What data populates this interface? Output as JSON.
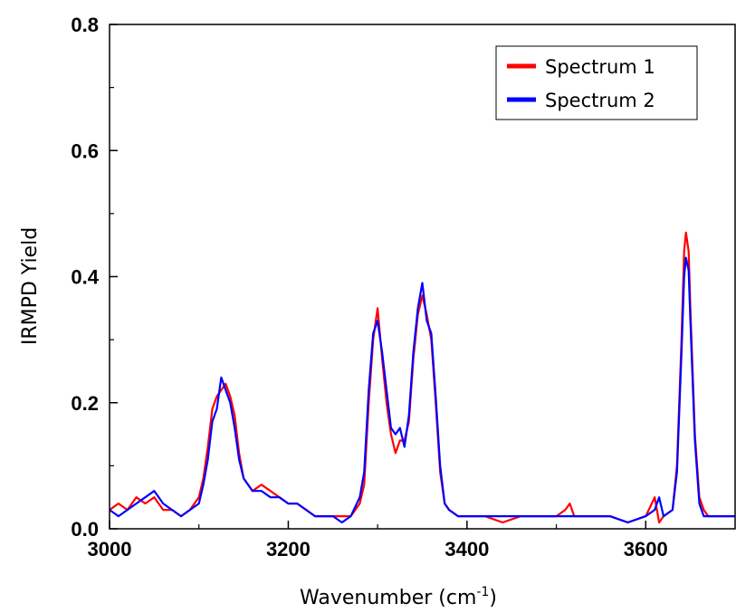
{
  "chart_data": {
    "type": "line",
    "xlabel": "Wavenumber (cm",
    "xlabel_sup": "-1",
    "xlabel_close": ")",
    "ylabel": "IRMPD Yield",
    "xlim": [
      3000,
      3700
    ],
    "ylim": [
      0.0,
      0.8
    ],
    "xticks": [
      3000,
      3200,
      3400,
      3600
    ],
    "xtick_labels": [
      "3000",
      "3200",
      "3400",
      "3600"
    ],
    "yticks": [
      0.0,
      0.2,
      0.4,
      0.6,
      0.8
    ],
    "ytick_labels": [
      "0.0",
      "0.2",
      "0.4",
      "0.6",
      "0.8"
    ],
    "grid": false,
    "legend_position": "top-right",
    "series": [
      {
        "name": "Spectrum 1",
        "color": "#ff0000",
        "x": [
          3000,
          3010,
          3020,
          3030,
          3040,
          3050,
          3060,
          3070,
          3080,
          3090,
          3100,
          3105,
          3110,
          3115,
          3120,
          3125,
          3130,
          3135,
          3140,
          3145,
          3150,
          3160,
          3170,
          3180,
          3190,
          3200,
          3210,
          3220,
          3230,
          3240,
          3250,
          3260,
          3270,
          3280,
          3285,
          3290,
          3295,
          3300,
          3305,
          3310,
          3315,
          3320,
          3325,
          3330,
          3335,
          3340,
          3345,
          3350,
          3355,
          3360,
          3365,
          3370,
          3375,
          3380,
          3390,
          3400,
          3420,
          3440,
          3460,
          3480,
          3500,
          3510,
          3515,
          3520,
          3540,
          3560,
          3580,
          3600,
          3610,
          3615,
          3620,
          3630,
          3635,
          3640,
          3643,
          3645,
          3648,
          3650,
          3655,
          3660,
          3665,
          3670,
          3680,
          3690,
          3700
        ],
        "values": [
          0.03,
          0.04,
          0.03,
          0.05,
          0.04,
          0.05,
          0.03,
          0.03,
          0.02,
          0.03,
          0.05,
          0.08,
          0.13,
          0.19,
          0.21,
          0.22,
          0.23,
          0.21,
          0.18,
          0.12,
          0.08,
          0.06,
          0.07,
          0.06,
          0.05,
          0.04,
          0.04,
          0.03,
          0.02,
          0.02,
          0.02,
          0.02,
          0.02,
          0.04,
          0.07,
          0.2,
          0.3,
          0.35,
          0.27,
          0.2,
          0.15,
          0.12,
          0.14,
          0.14,
          0.17,
          0.27,
          0.34,
          0.37,
          0.34,
          0.3,
          0.2,
          0.09,
          0.04,
          0.03,
          0.02,
          0.02,
          0.02,
          0.01,
          0.02,
          0.02,
          0.02,
          0.03,
          0.04,
          0.02,
          0.02,
          0.02,
          0.01,
          0.02,
          0.05,
          0.01,
          0.02,
          0.03,
          0.1,
          0.3,
          0.44,
          0.47,
          0.44,
          0.35,
          0.15,
          0.05,
          0.03,
          0.02,
          0.02,
          0.02,
          0.02
        ]
      },
      {
        "name": "Spectrum 2",
        "color": "#0000ff",
        "x": [
          3000,
          3010,
          3020,
          3030,
          3040,
          3050,
          3060,
          3070,
          3080,
          3090,
          3100,
          3105,
          3110,
          3115,
          3120,
          3125,
          3130,
          3135,
          3140,
          3145,
          3150,
          3160,
          3170,
          3180,
          3190,
          3200,
          3210,
          3220,
          3230,
          3240,
          3250,
          3260,
          3270,
          3280,
          3285,
          3290,
          3295,
          3300,
          3305,
          3310,
          3315,
          3320,
          3325,
          3330,
          3335,
          3340,
          3345,
          3350,
          3355,
          3360,
          3365,
          3370,
          3375,
          3380,
          3390,
          3400,
          3420,
          3440,
          3460,
          3480,
          3500,
          3510,
          3515,
          3520,
          3540,
          3560,
          3580,
          3600,
          3610,
          3615,
          3620,
          3630,
          3635,
          3640,
          3643,
          3645,
          3648,
          3650,
          3655,
          3660,
          3665,
          3670,
          3680,
          3690,
          3700
        ],
        "values": [
          0.03,
          0.02,
          0.03,
          0.04,
          0.05,
          0.06,
          0.04,
          0.03,
          0.02,
          0.03,
          0.04,
          0.07,
          0.11,
          0.17,
          0.19,
          0.24,
          0.22,
          0.2,
          0.16,
          0.11,
          0.08,
          0.06,
          0.06,
          0.05,
          0.05,
          0.04,
          0.04,
          0.03,
          0.02,
          0.02,
          0.02,
          0.01,
          0.02,
          0.05,
          0.09,
          0.22,
          0.31,
          0.33,
          0.28,
          0.22,
          0.16,
          0.15,
          0.16,
          0.13,
          0.18,
          0.28,
          0.35,
          0.39,
          0.33,
          0.31,
          0.21,
          0.1,
          0.04,
          0.03,
          0.02,
          0.02,
          0.02,
          0.02,
          0.02,
          0.02,
          0.02,
          0.02,
          0.02,
          0.02,
          0.02,
          0.02,
          0.01,
          0.02,
          0.03,
          0.05,
          0.02,
          0.03,
          0.09,
          0.28,
          0.4,
          0.43,
          0.41,
          0.33,
          0.14,
          0.04,
          0.02,
          0.02,
          0.02,
          0.02,
          0.02
        ]
      }
    ]
  }
}
